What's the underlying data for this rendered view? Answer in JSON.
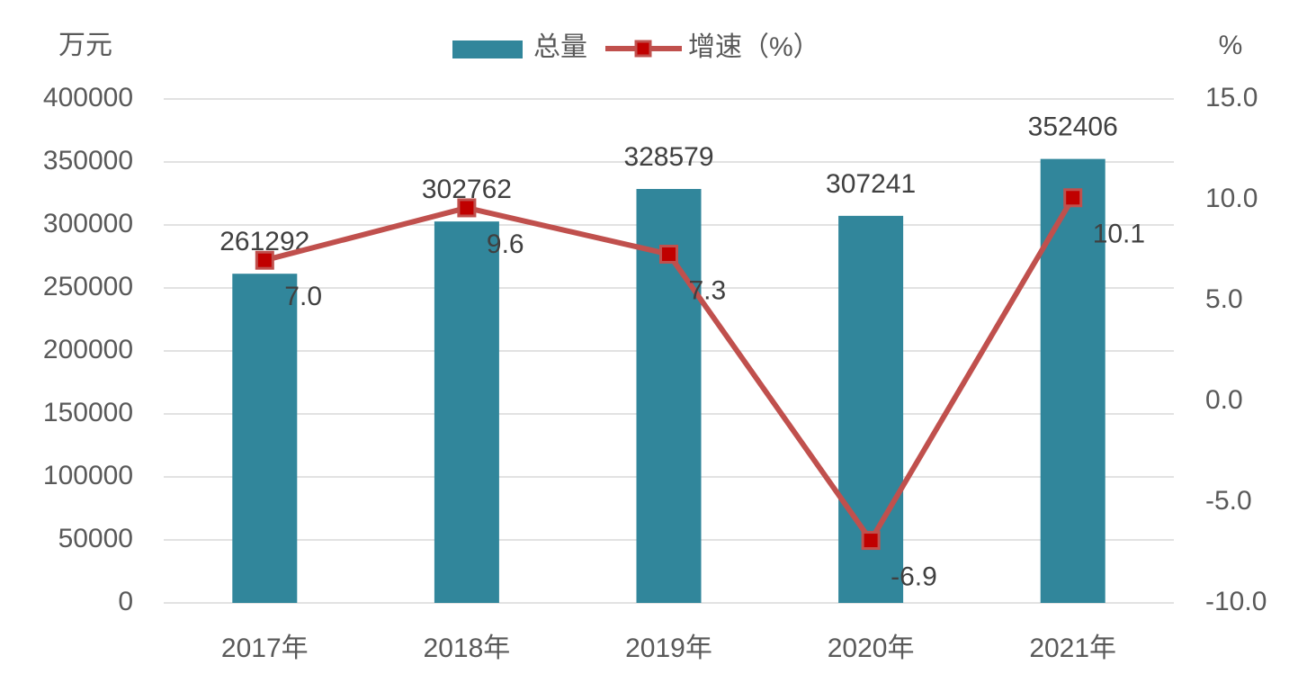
{
  "chart_data": {
    "type": "combo",
    "y_label": "万元",
    "y2_label": "%",
    "categories": [
      "2017年",
      "2018年",
      "2019年",
      "2020年",
      "2021年"
    ],
    "series": [
      {
        "name": "总量",
        "type": "bar",
        "color": "#31869b",
        "values": [
          261292,
          302762,
          328579,
          307241,
          352406
        ]
      },
      {
        "name": "增速（%）",
        "type": "line",
        "axis": "y2",
        "color": "#c0504d",
        "marker_color": "#c00000",
        "values": [
          7.0,
          9.6,
          7.3,
          -6.9,
          10.1
        ],
        "value_labels": [
          "7.0",
          "9.6",
          "7.3",
          "-6.9",
          "10.1"
        ]
      }
    ],
    "ylim": [
      0,
      400000
    ],
    "yticks": [
      0,
      50000,
      100000,
      150000,
      200000,
      250000,
      300000,
      350000,
      400000
    ],
    "y2lim": [
      -10,
      15
    ],
    "y2ticks": [
      {
        "value": -10,
        "label": "-10.0"
      },
      {
        "value": -5,
        "label": "-5.0"
      },
      {
        "value": 0,
        "label": "0.0"
      },
      {
        "value": 5,
        "label": "5.0"
      },
      {
        "value": 10,
        "label": "10.0"
      },
      {
        "value": 15,
        "label": "15.0"
      }
    ],
    "grid": true,
    "legend": "top"
  }
}
